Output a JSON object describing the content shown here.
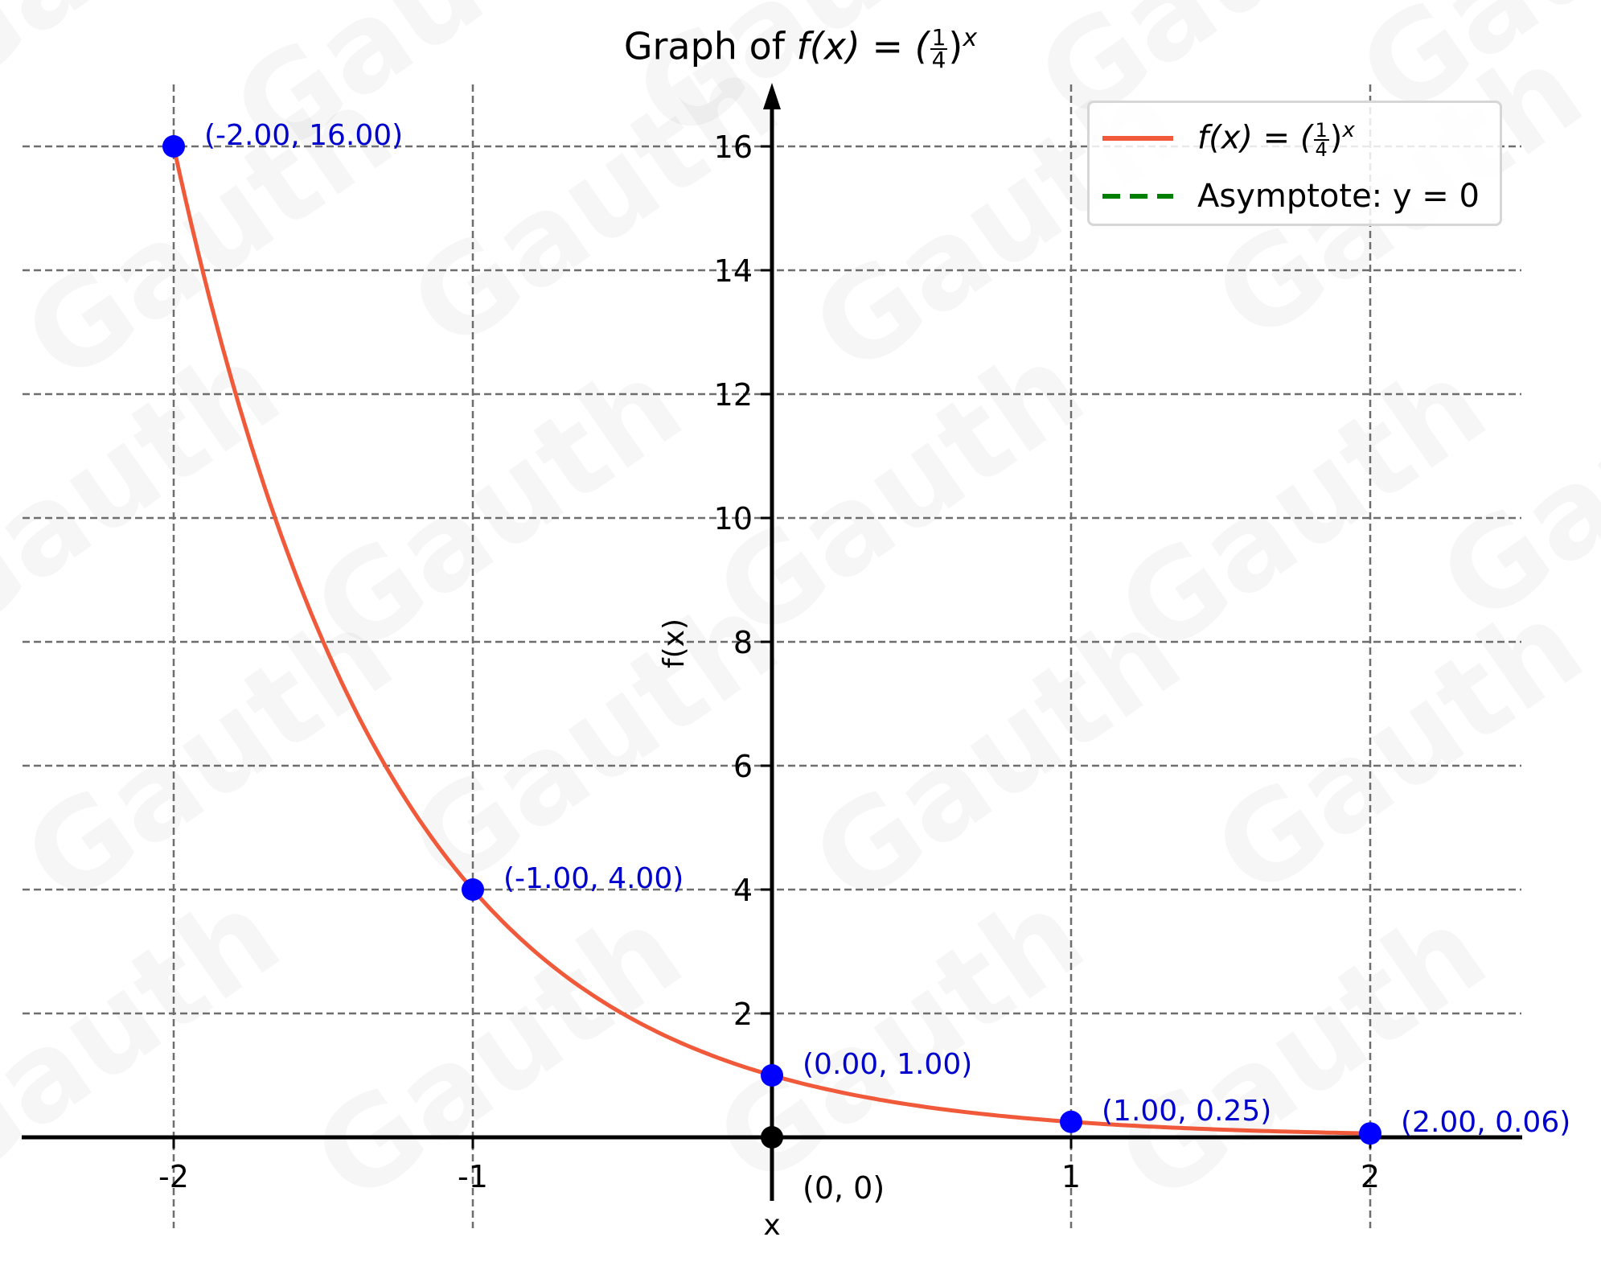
{
  "title": {
    "prefix": "Graph of ",
    "func": "f(x) = (",
    "frac_num": "1",
    "frac_den": "4",
    "close": ")",
    "exp": "x"
  },
  "axes": {
    "xlabel": "x",
    "ylabel": "f(x)",
    "origin_label": "(0, 0)"
  },
  "legend": {
    "items": [
      {
        "label_func": "f(x) = (",
        "frac_num": "1",
        "frac_den": "4",
        "close": ")",
        "exp": "x",
        "color": "#f05a3a",
        "style": "solid"
      },
      {
        "label": "Asymptote: y = 0",
        "color": "#007f00",
        "style": "dashed"
      }
    ]
  },
  "colors": {
    "curve": "#f05a3a",
    "point": "#0000ff",
    "point_label": "#0000cc",
    "grid": "#6e6e6e",
    "axis": "#000000",
    "asymptote": "#007f00"
  },
  "watermark": "Gauth",
  "chart_data": {
    "type": "line",
    "title": "Graph of f(x) = (1/4)^x",
    "xlabel": "x",
    "ylabel": "f(x)",
    "xlim": [
      -2.5,
      2.5
    ],
    "ylim": [
      -0.5,
      17
    ],
    "grid": true,
    "legend_position": "upper right",
    "x_ticks": [
      -2,
      -1,
      1,
      2
    ],
    "x_tick_labels": [
      "-2",
      "-1",
      "1",
      "2"
    ],
    "y_ticks": [
      2,
      4,
      6,
      8,
      10,
      12,
      14,
      16
    ],
    "y_tick_labels": [
      "2",
      "4",
      "6",
      "8",
      "10",
      "12",
      "14",
      "16"
    ],
    "series": [
      {
        "name": "f(x) = (1/4)^x",
        "function": "(1/4)^x",
        "x_range": [
          -2,
          2
        ],
        "color": "#f05a3a"
      },
      {
        "name": "Asymptote: y = 0",
        "y": 0,
        "color": "#007f00",
        "style": "dashed"
      }
    ],
    "points": [
      {
        "x": -2,
        "y": 16,
        "label": "(-2.00, 16.00)"
      },
      {
        "x": -1,
        "y": 4,
        "label": "(-1.00, 4.00)"
      },
      {
        "x": 0,
        "y": 1,
        "label": "(0.00, 1.00)"
      },
      {
        "x": 1,
        "y": 0.25,
        "label": "(1.00, 0.25)"
      },
      {
        "x": 2,
        "y": 0.0625,
        "label": "(2.00, 0.06)"
      }
    ],
    "origin_point": {
      "x": 0,
      "y": 0,
      "label": "(0, 0)"
    }
  }
}
